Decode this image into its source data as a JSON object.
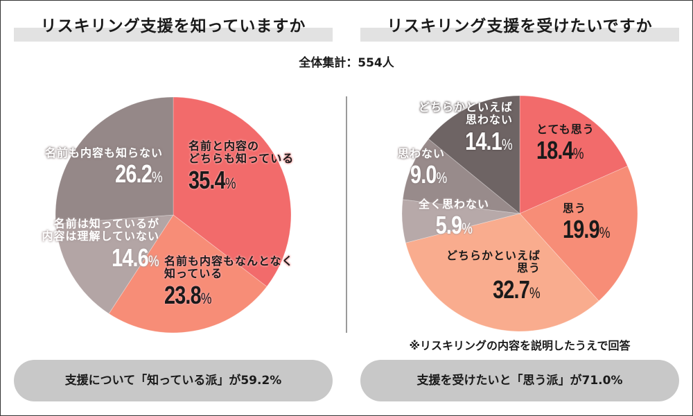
{
  "total_label": "全体集計：554人",
  "colors": {
    "red": "#F26B6B",
    "salmon": "#F78D77",
    "peach": "#F9AC8E",
    "light_gray": "#B7A9A9",
    "mid_gray": "#988B8B",
    "dark_gray": "#6E6464",
    "left_gray": "#958888",
    "left_light_gray": "#B3A5A5",
    "pill": "#C8C8C8",
    "title_bar": "#E2E2E2"
  },
  "chart_data": [
    {
      "type": "pie",
      "title": "リスキリング支援を知っていますか",
      "start": "top",
      "direction": "clockwise",
      "slices": [
        {
          "label": "名前と内容のどちらも知っている",
          "label_lines": [
            "名前と内容の",
            "どちらも知っている"
          ],
          "value": 35.4,
          "value_text": "35.4",
          "unit": "%",
          "color": "#F26B6B"
        },
        {
          "label": "名前も内容もなんとなく知っている",
          "label_lines": [
            "名前も内容もなんとなく",
            "知っている"
          ],
          "value": 23.8,
          "value_text": "23.8",
          "unit": "%",
          "color": "#F78D77"
        },
        {
          "label": "名前は知っているが内容は理解していない",
          "label_lines": [
            "名前は知っているが",
            "内容は理解していない"
          ],
          "value": 14.6,
          "value_text": "14.6",
          "unit": "%",
          "color": "#B3A5A5"
        },
        {
          "label": "名前も内容も知らない",
          "label_lines": [
            "名前も内容も知らない"
          ],
          "value": 26.2,
          "value_text": "26.2",
          "unit": "%",
          "color": "#958888"
        }
      ],
      "summary": "支援について「知っている派」が59.2%"
    },
    {
      "type": "pie",
      "title": "リスキリング支援を受けたいですか",
      "start": "top",
      "direction": "clockwise",
      "slices": [
        {
          "label": "とても思う",
          "label_lines": [
            "とても思う"
          ],
          "value": 18.4,
          "value_text": "18.4",
          "unit": "%",
          "color": "#F26B6B"
        },
        {
          "label": "思う",
          "label_lines": [
            "思う"
          ],
          "value": 19.9,
          "value_text": "19.9",
          "unit": "%",
          "color": "#F78D77"
        },
        {
          "label": "どちらかといえば思う",
          "label_lines": [
            "どちらかといえば",
            "思う"
          ],
          "value": 32.7,
          "value_text": "32.7",
          "unit": "%",
          "color": "#F9AC8E"
        },
        {
          "label": "全く思わない",
          "label_lines": [
            "全く思わない"
          ],
          "value": 5.9,
          "value_text": "5.9",
          "unit": "%",
          "color": "#B7A9A9"
        },
        {
          "label": "思わない",
          "label_lines": [
            "思わない"
          ],
          "value": 9.0,
          "value_text": "9.0",
          "unit": "%",
          "color": "#988B8B"
        },
        {
          "label": "どちらかといえば思わない",
          "label_lines": [
            "どちらかといえば",
            "思わない"
          ],
          "value": 14.1,
          "value_text": "14.1",
          "unit": "%",
          "color": "#6E6464"
        }
      ],
      "note": "※リスキリングの内容を説明したうえで回答",
      "summary": "支援を受けたいと「思う派」が71.0%"
    }
  ]
}
